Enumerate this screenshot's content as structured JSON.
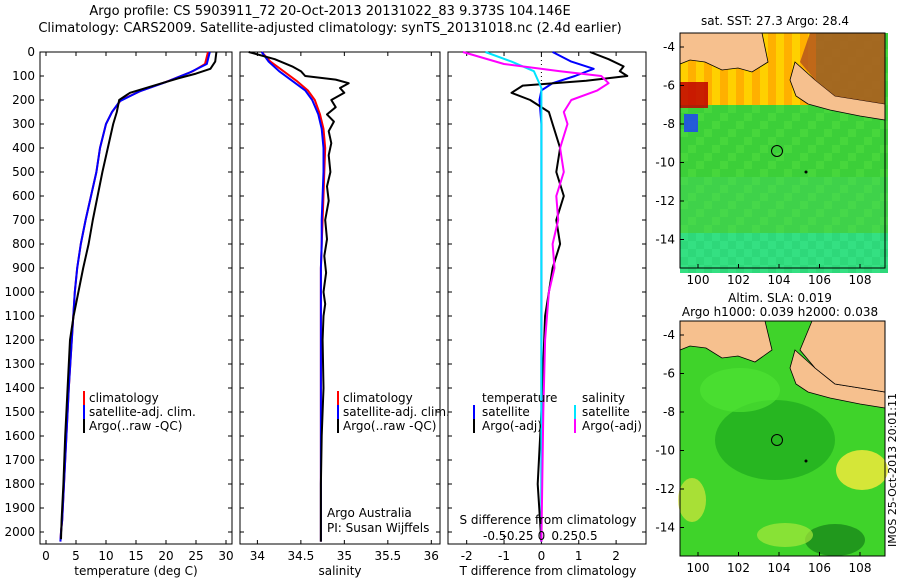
{
  "header": {
    "line1": "Argo profile: CS 5903911_72 20-Oct-2013 20131022_83 9.373S 104.146E",
    "line2": "Climatology: CARS2009. Satellite-adjusted climatology: synTS_20131018.nc (2.4d earlier)"
  },
  "colors": {
    "climatology": "#ff0000",
    "satellite": "#0000ff",
    "argo": "#000000",
    "sat_salinity": "#00e5ff",
    "argo_salinity": "#ff00ff",
    "land": "#f6c08e"
  },
  "chart_data": [
    {
      "type": "line",
      "panel": "temperature",
      "xlabel": "temperature (deg C)",
      "ylabel": "",
      "xlim": [
        -1,
        31
      ],
      "ylim": [
        2050,
        0
      ],
      "xticks": [
        0,
        5,
        10,
        15,
        20,
        25,
        30
      ],
      "yticks": [
        0,
        100,
        200,
        300,
        400,
        500,
        600,
        700,
        800,
        900,
        1000,
        1100,
        1200,
        1300,
        1400,
        1500,
        1600,
        1700,
        1800,
        1900,
        2000
      ],
      "legend": [
        "climatology",
        "satellite-adj. clim.",
        "Argo(..raw -QC)"
      ],
      "series": [
        {
          "name": "climatology",
          "color": "#ff0000",
          "x": [
            27.0,
            26.5,
            24.5,
            20.5,
            16,
            12.5,
            11,
            10,
            9,
            8.4,
            7.5,
            6.6,
            5.8,
            5.2,
            4.8,
            4.3,
            3.8,
            3.4,
            3.0,
            2.7,
            2.5,
            2.4
          ],
          "y": [
            0,
            50,
            80,
            120,
            160,
            200,
            250,
            300,
            400,
            500,
            600,
            700,
            800,
            900,
            1000,
            1200,
            1400,
            1600,
            1800,
            1950,
            2000,
            2040
          ]
        },
        {
          "name": "satellite-adj. clim.",
          "color": "#0000ff",
          "x": [
            27.3,
            26.8,
            24.0,
            20.0,
            15.5,
            12.3,
            11,
            10,
            9,
            8.4,
            7.5,
            6.6,
            5.8,
            5.2,
            4.8,
            4.3,
            3.8,
            3.4,
            3.0,
            2.7,
            2.5,
            2.4
          ],
          "y": [
            0,
            50,
            85,
            125,
            165,
            205,
            250,
            300,
            400,
            500,
            600,
            700,
            800,
            900,
            1000,
            1200,
            1400,
            1600,
            1800,
            1950,
            2000,
            2040
          ]
        },
        {
          "name": "Argo(..raw -QC)",
          "color": "#000000",
          "x": [
            28.4,
            28.2,
            27.4,
            25,
            22,
            18,
            14,
            12.2,
            11.8,
            11.2,
            10.3,
            9.4,
            8.6,
            7.8,
            7.1,
            6.2,
            5.4,
            4.6,
            4.0,
            3.6,
            3.2,
            2.9,
            2.6,
            2.5
          ],
          "y": [
            0,
            40,
            70,
            90,
            110,
            140,
            170,
            200,
            250,
            300,
            400,
            500,
            600,
            700,
            800,
            900,
            1000,
            1100,
            1200,
            1400,
            1600,
            1800,
            1950,
            2030
          ]
        }
      ]
    },
    {
      "type": "line",
      "panel": "salinity",
      "xlabel": "salinity",
      "ylabel": "",
      "xlim": [
        33.8,
        36.1
      ],
      "ylim": [
        2050,
        0
      ],
      "xticks": [
        34,
        34.5,
        35,
        35.5,
        36
      ],
      "legend": [
        "climatology",
        "satellite-adj. clim.",
        "Argo(..raw -QC)"
      ],
      "annotations": [
        "Argo Australia",
        "PI: Susan Wijffels"
      ],
      "series": [
        {
          "name": "climatology",
          "color": "#ff0000",
          "x": [
            34.05,
            34.15,
            34.3,
            34.45,
            34.58,
            34.66,
            34.72,
            34.76,
            34.78,
            34.77,
            34.76,
            34.75,
            34.74,
            34.73,
            34.73,
            34.73,
            34.73,
            34.73,
            34.73
          ],
          "y": [
            0,
            40,
            80,
            120,
            160,
            200,
            260,
            320,
            400,
            500,
            600,
            700,
            800,
            900,
            1000,
            1200,
            1400,
            1700,
            2040
          ]
        },
        {
          "name": "satellite-adj. clim.",
          "color": "#0000ff",
          "x": [
            34.05,
            34.13,
            34.25,
            34.4,
            34.55,
            34.63,
            34.7,
            34.74,
            34.76,
            34.76,
            34.75,
            34.74,
            34.74,
            34.73,
            34.73,
            34.73,
            34.73,
            34.73,
            34.73
          ],
          "y": [
            0,
            40,
            80,
            120,
            160,
            200,
            260,
            320,
            400,
            500,
            600,
            700,
            800,
            900,
            1000,
            1200,
            1400,
            1700,
            2040
          ]
        },
        {
          "name": "Argo(..raw -QC)",
          "color": "#000000",
          "x": [
            33.9,
            34.2,
            34.4,
            34.5,
            34.55,
            34.9,
            35.05,
            34.95,
            35.0,
            34.85,
            34.9,
            34.8,
            34.88,
            34.82,
            34.85,
            34.82,
            34.84,
            34.8,
            34.82,
            34.78,
            34.8,
            34.77,
            34.79,
            34.76,
            34.78,
            34.76,
            34.75,
            34.76,
            34.74,
            34.73,
            34.73
          ],
          "y": [
            0,
            30,
            60,
            80,
            100,
            115,
            130,
            150,
            170,
            200,
            230,
            260,
            290,
            330,
            380,
            430,
            500,
            560,
            620,
            700,
            780,
            850,
            920,
            1000,
            1050,
            1100,
            1200,
            1400,
            1600,
            1800,
            2040
          ]
        }
      ]
    },
    {
      "type": "line",
      "panel": "difference",
      "xlabel": "T difference from climatology",
      "xlabel_top": "S difference from climatology",
      "xlim": [
        -2.5,
        2.8
      ],
      "ylim": [
        2050,
        0
      ],
      "xticks": [
        -2,
        -1,
        0,
        1,
        2
      ],
      "xticks_top": [
        "-0.5",
        "-0.25",
        "0",
        "0.25",
        "0.5"
      ],
      "legend_left": {
        "title": "temperature",
        "items": [
          "satellite",
          "Argo(-adj)"
        ]
      },
      "legend_right": {
        "title": "salinity",
        "items": [
          "satellite",
          "Argo(-adj)"
        ]
      },
      "series": [
        {
          "name": "temperature satellite",
          "color": "#0000ff",
          "x": [
            0.3,
            0.8,
            1.4,
            0.9,
            0.3,
            0,
            -0.05,
            0,
            0,
            0,
            0
          ],
          "y": [
            0,
            40,
            70,
            100,
            130,
            160,
            200,
            300,
            600,
            1200,
            2040
          ]
        },
        {
          "name": "temperature Argo(-adj)",
          "color": "#000000",
          "x": [
            1.3,
            1.8,
            2.2,
            2.1,
            2.3,
            1.2,
            -0.5,
            -0.8,
            -0.3,
            0.2,
            0.3,
            0.5,
            0.4,
            0.6,
            0.4,
            0.5,
            0.3,
            0.2,
            0.1,
            0.05,
            0,
            -0.1,
            0
          ],
          "y": [
            0,
            30,
            60,
            80,
            100,
            120,
            140,
            170,
            200,
            250,
            300,
            400,
            500,
            600,
            700,
            800,
            900,
            1000,
            1100,
            1300,
            1500,
            1800,
            2040
          ]
        },
        {
          "name": "salinity satellite",
          "color": "#00e5ff",
          "x": [
            -1.5,
            -0.8,
            -0.2,
            0,
            0,
            0,
            0
          ],
          "y": [
            0,
            40,
            80,
            150,
            300,
            1000,
            2040
          ]
        },
        {
          "name": "salinity Argo(-adj)",
          "color": "#ff00ff",
          "x": [
            -2.1,
            -1.0,
            0.5,
            1.6,
            1.8,
            1.5,
            0.8,
            0.6,
            0.7,
            0.5,
            0.6,
            0.4,
            0.45,
            0.3,
            0.35,
            0.2,
            0.15,
            0.1,
            0.05,
            0
          ],
          "y": [
            0,
            50,
            80,
            100,
            130,
            160,
            200,
            250,
            300,
            400,
            500,
            600,
            700,
            800,
            900,
            1000,
            1100,
            1200,
            1500,
            2040
          ]
        }
      ]
    }
  ],
  "maps": {
    "sst": {
      "title": "sat. SST: 27.3 Argo: 28.4",
      "xticks": [
        "100",
        "102",
        "104",
        "106",
        "108"
      ],
      "yticks": [
        "-4",
        "-6",
        "-8",
        "-10",
        "-12",
        "-14"
      ]
    },
    "sla": {
      "title_line1": "Altim. SLA: 0.019",
      "title_line2": "Argo h1000: 0.039 h2000: 0.038",
      "xticks": [
        "100",
        "102",
        "104",
        "106",
        "108"
      ],
      "yticks": [
        "-4",
        "-6",
        "-8",
        "-10",
        "-12",
        "-14"
      ]
    }
  },
  "footer": {
    "vertical_label": "IMOS 25-Oct-2013 20:01:11"
  }
}
